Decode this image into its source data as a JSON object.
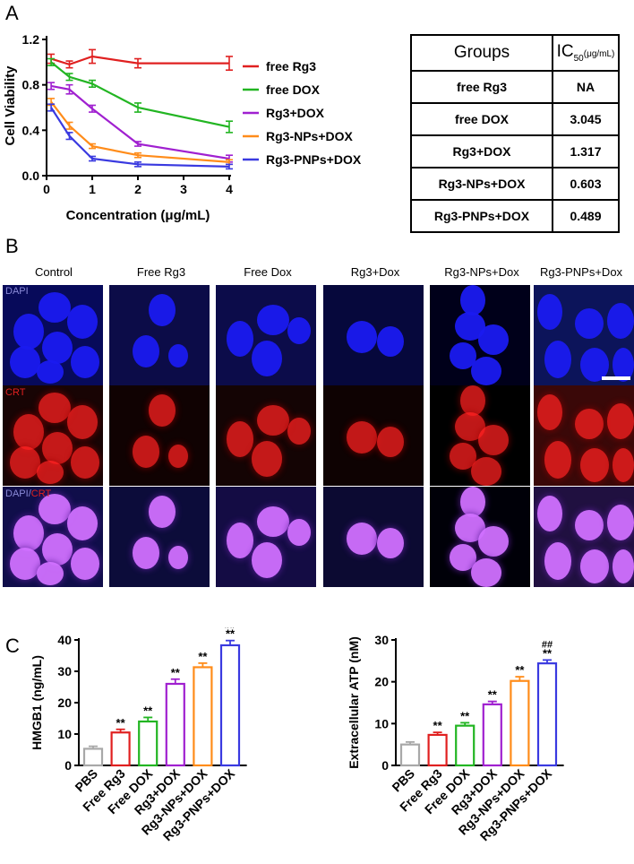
{
  "panels": {
    "a": "A",
    "b": "B",
    "c": "C"
  },
  "chart_data": [
    {
      "type": "line",
      "xlabel": "Concentration (μg/mL)",
      "ylabel": "Cell Viability",
      "xlim": [
        0,
        4
      ],
      "ylim": [
        0,
        1.2
      ],
      "xticks": [
        "0",
        "1",
        "2",
        "3",
        "4"
      ],
      "yticks": [
        "0.0",
        "0.4",
        "0.8",
        "1.2"
      ],
      "x": [
        0.1,
        0.5,
        1,
        2,
        4
      ],
      "legend_position": "right",
      "series": [
        {
          "name": "free Rg3",
          "color": "#e02020",
          "values": [
            1.03,
            0.98,
            1.05,
            0.99,
            0.99
          ],
          "errors": [
            0.04,
            0.03,
            0.06,
            0.04,
            0.06
          ]
        },
        {
          "name": "free DOX",
          "color": "#22b522",
          "values": [
            1.0,
            0.87,
            0.81,
            0.6,
            0.43
          ],
          "errors": [
            0.03,
            0.03,
            0.03,
            0.04,
            0.05
          ]
        },
        {
          "name": "Rg3+DOX",
          "color": "#a020d0",
          "values": [
            0.79,
            0.76,
            0.59,
            0.28,
            0.15
          ],
          "errors": [
            0.03,
            0.04,
            0.03,
            0.02,
            0.03
          ]
        },
        {
          "name": "Rg3-NPs+DOX",
          "color": "#ff8c1a",
          "values": [
            0.65,
            0.44,
            0.26,
            0.18,
            0.12
          ],
          "errors": [
            0.03,
            0.03,
            0.02,
            0.02,
            0.02
          ]
        },
        {
          "name": "Rg3-PNPs+DOX",
          "color": "#3a3ae0",
          "values": [
            0.6,
            0.35,
            0.15,
            0.1,
            0.08
          ],
          "errors": [
            0.03,
            0.03,
            0.02,
            0.02,
            0.02
          ]
        }
      ]
    },
    {
      "type": "bar",
      "ylabel": "HMGB1 (ng/mL)",
      "ylim": [
        0,
        40
      ],
      "yticks": [
        "0",
        "10",
        "20",
        "30",
        "40"
      ],
      "categories": [
        "PBS",
        "Free Rg3",
        "Free DOX",
        "Rg3+DOX",
        "Rg3-NPs+DOX",
        "Rg3-PNPs+DOX"
      ],
      "values": [
        5.3,
        10.5,
        14.0,
        26.0,
        31.3,
        38.3
      ],
      "errors": [
        0.8,
        1.0,
        1.3,
        1.5,
        1.3,
        1.5
      ],
      "annotations": [
        "",
        "**",
        "**",
        "**",
        "**",
        "##\n**"
      ]
    },
    {
      "type": "bar",
      "ylabel": "Extracellular ATP (nM)",
      "ylim": [
        0,
        30
      ],
      "yticks": [
        "0",
        "10",
        "20",
        "30"
      ],
      "categories": [
        "PBS",
        "Free Rg3",
        "Free DOX",
        "Rg3+DOX",
        "Rg3-NPs+DOX",
        "Rg3-PNPs+DOX"
      ],
      "values": [
        5.0,
        7.3,
        9.5,
        14.6,
        20.2,
        24.4
      ],
      "errors": [
        0.6,
        0.6,
        0.7,
        0.7,
        1.0,
        0.8
      ],
      "annotations": [
        "",
        "**",
        "**",
        "**",
        "**",
        "##\n**"
      ]
    }
  ],
  "bar_colors": [
    "#a8a8a8",
    "#e02020",
    "#22b522",
    "#a020d0",
    "#ff8c1a",
    "#3a3ae0"
  ],
  "table": {
    "header_groups": "Groups",
    "header_ic": "IC",
    "header_ic_sub": "50",
    "header_ic_unit": "(μg/mL)",
    "rows": [
      {
        "group": "free Rg3",
        "value": "NA"
      },
      {
        "group": "free DOX",
        "value": "3.045"
      },
      {
        "group": "Rg3+DOX",
        "value": "1.317"
      },
      {
        "group": "Rg3-NPs+DOX",
        "value": "0.603"
      },
      {
        "group": "Rg3-PNPs+DOX",
        "value": "0.489"
      }
    ]
  },
  "microscopy": {
    "columns": [
      "Control",
      "Free Rg3",
      "Free Dox",
      "Rg3+Dox",
      "Rg3-NPs+Dox",
      "Rg3-PNPs+Dox"
    ],
    "row_labels": {
      "dapi": "DAPI",
      "crt": "CRT",
      "merge_dapi": "DAPI",
      "merge_sep": "/",
      "merge_crt": "CRT"
    },
    "colors": {
      "dapi_label": "#8a8ad8",
      "crt_label": "#e02020",
      "nucleus": "#1a1af0",
      "crt": "#ff2020",
      "merge": "#d070ff"
    }
  }
}
